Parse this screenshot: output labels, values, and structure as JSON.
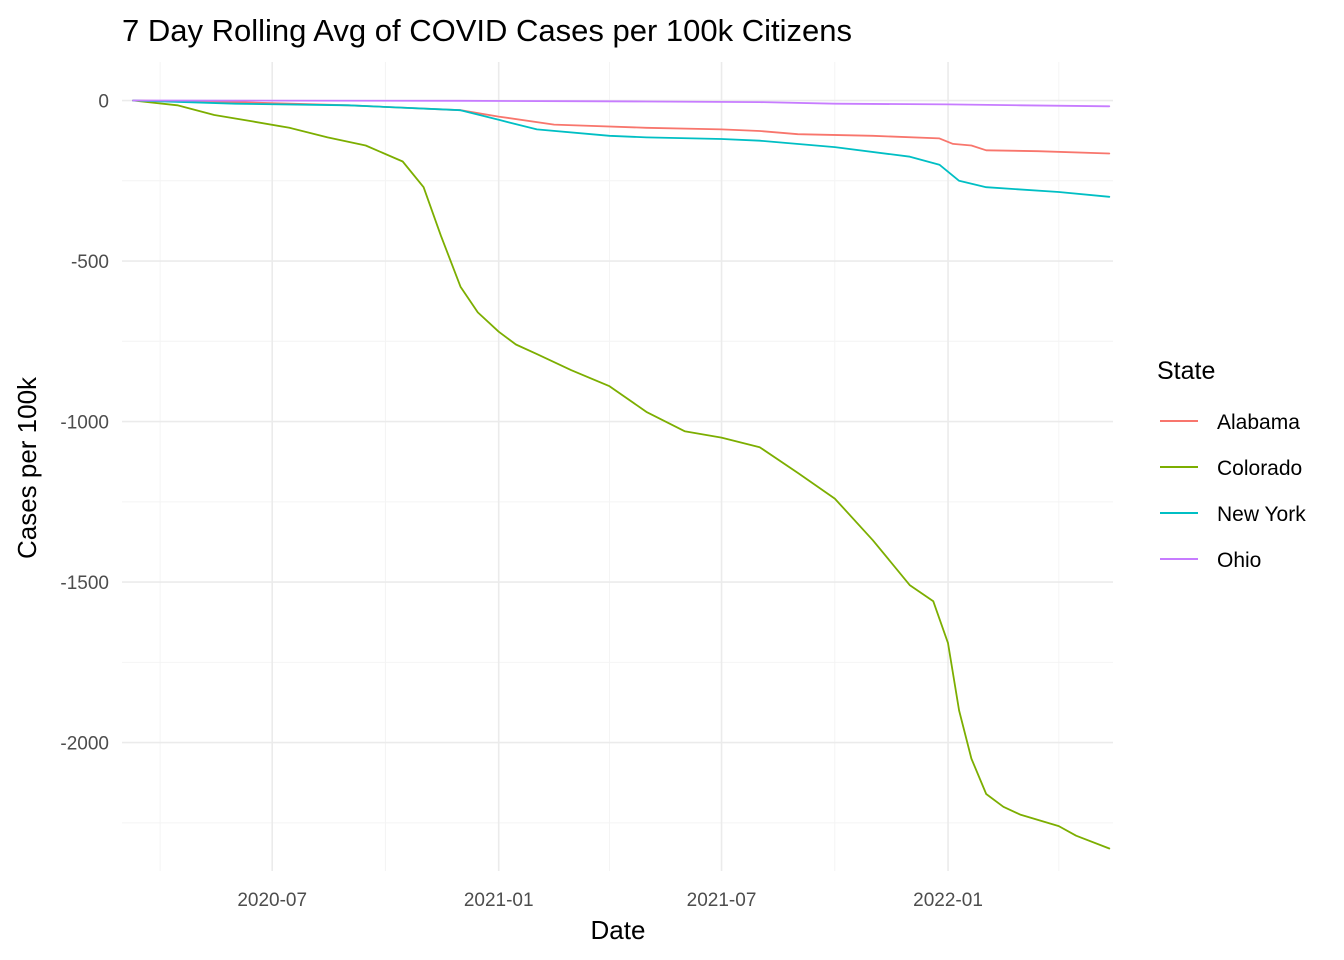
{
  "chart_data": {
    "type": "line",
    "title": "7 Day Rolling Avg of COVID Cases per 100k Citizens",
    "xlabel": "Date",
    "ylabel": "Cases per 100k",
    "x_type": "date",
    "xlim": [
      "2020-03-01",
      "2022-05-15"
    ],
    "ylim": [
      -2400,
      120
    ],
    "x_ticks": [
      "2020-07",
      "2021-01",
      "2021-07",
      "2022-01"
    ],
    "y_ticks": [
      0,
      -500,
      -1000,
      -1500,
      -2000
    ],
    "grid": true,
    "legend": {
      "title": "State",
      "position": "right"
    },
    "series": [
      {
        "name": "Alabama",
        "color": "#F8766D",
        "points": [
          [
            "2020-03-10",
            0
          ],
          [
            "2020-06-01",
            -5
          ],
          [
            "2020-09-01",
            -15
          ],
          [
            "2020-12-01",
            -30
          ],
          [
            "2021-01-01",
            -50
          ],
          [
            "2021-02-15",
            -75
          ],
          [
            "2021-05-01",
            -85
          ],
          [
            "2021-07-01",
            -90
          ],
          [
            "2021-08-01",
            -95
          ],
          [
            "2021-09-01",
            -105
          ],
          [
            "2021-11-01",
            -110
          ],
          [
            "2021-12-25",
            -118
          ],
          [
            "2022-01-05",
            -135
          ],
          [
            "2022-01-20",
            -140
          ],
          [
            "2022-02-01",
            -155
          ],
          [
            "2022-03-15",
            -158
          ],
          [
            "2022-05-12",
            -165
          ]
        ]
      },
      {
        "name": "Colorado",
        "color": "#7CAE00",
        "points": [
          [
            "2020-03-10",
            0
          ],
          [
            "2020-04-15",
            -15
          ],
          [
            "2020-05-15",
            -45
          ],
          [
            "2020-06-15",
            -65
          ],
          [
            "2020-07-15",
            -85
          ],
          [
            "2020-08-15",
            -115
          ],
          [
            "2020-09-15",
            -140
          ],
          [
            "2020-10-15",
            -190
          ],
          [
            "2020-11-01",
            -270
          ],
          [
            "2020-11-15",
            -420
          ],
          [
            "2020-12-01",
            -580
          ],
          [
            "2020-12-15",
            -660
          ],
          [
            "2021-01-01",
            -720
          ],
          [
            "2021-01-15",
            -760
          ],
          [
            "2021-02-01",
            -790
          ],
          [
            "2021-03-01",
            -840
          ],
          [
            "2021-04-01",
            -890
          ],
          [
            "2021-05-01",
            -970
          ],
          [
            "2021-06-01",
            -1030
          ],
          [
            "2021-07-01",
            -1050
          ],
          [
            "2021-08-01",
            -1080
          ],
          [
            "2021-09-01",
            -1160
          ],
          [
            "2021-10-01",
            -1240
          ],
          [
            "2021-11-01",
            -1370
          ],
          [
            "2021-12-01",
            -1510
          ],
          [
            "2021-12-20",
            -1560
          ],
          [
            "2022-01-01",
            -1690
          ],
          [
            "2022-01-10",
            -1900
          ],
          [
            "2022-01-20",
            -2050
          ],
          [
            "2022-02-01",
            -2160
          ],
          [
            "2022-02-15",
            -2200
          ],
          [
            "2022-03-01",
            -2225
          ],
          [
            "2022-04-01",
            -2260
          ],
          [
            "2022-04-15",
            -2290
          ],
          [
            "2022-05-12",
            -2330
          ]
        ]
      },
      {
        "name": "New York",
        "color": "#00BFC4",
        "points": [
          [
            "2020-03-10",
            0
          ],
          [
            "2020-06-01",
            -10
          ],
          [
            "2020-09-01",
            -15
          ],
          [
            "2020-12-01",
            -30
          ],
          [
            "2021-01-01",
            -60
          ],
          [
            "2021-02-01",
            -90
          ],
          [
            "2021-04-01",
            -110
          ],
          [
            "2021-05-01",
            -115
          ],
          [
            "2021-07-01",
            -120
          ],
          [
            "2021-08-01",
            -125
          ],
          [
            "2021-10-01",
            -145
          ],
          [
            "2021-12-01",
            -175
          ],
          [
            "2021-12-25",
            -200
          ],
          [
            "2022-01-10",
            -250
          ],
          [
            "2022-02-01",
            -270
          ],
          [
            "2022-04-01",
            -285
          ],
          [
            "2022-05-12",
            -300
          ]
        ]
      },
      {
        "name": "Ohio",
        "color": "#C77CFF",
        "points": [
          [
            "2020-03-10",
            0
          ],
          [
            "2020-12-01",
            -1
          ],
          [
            "2021-03-01",
            -2
          ],
          [
            "2021-05-01",
            -3
          ],
          [
            "2021-08-01",
            -5
          ],
          [
            "2021-10-01",
            -10
          ],
          [
            "2022-01-01",
            -12
          ],
          [
            "2022-03-01",
            -15
          ],
          [
            "2022-05-12",
            -18
          ]
        ]
      }
    ]
  }
}
